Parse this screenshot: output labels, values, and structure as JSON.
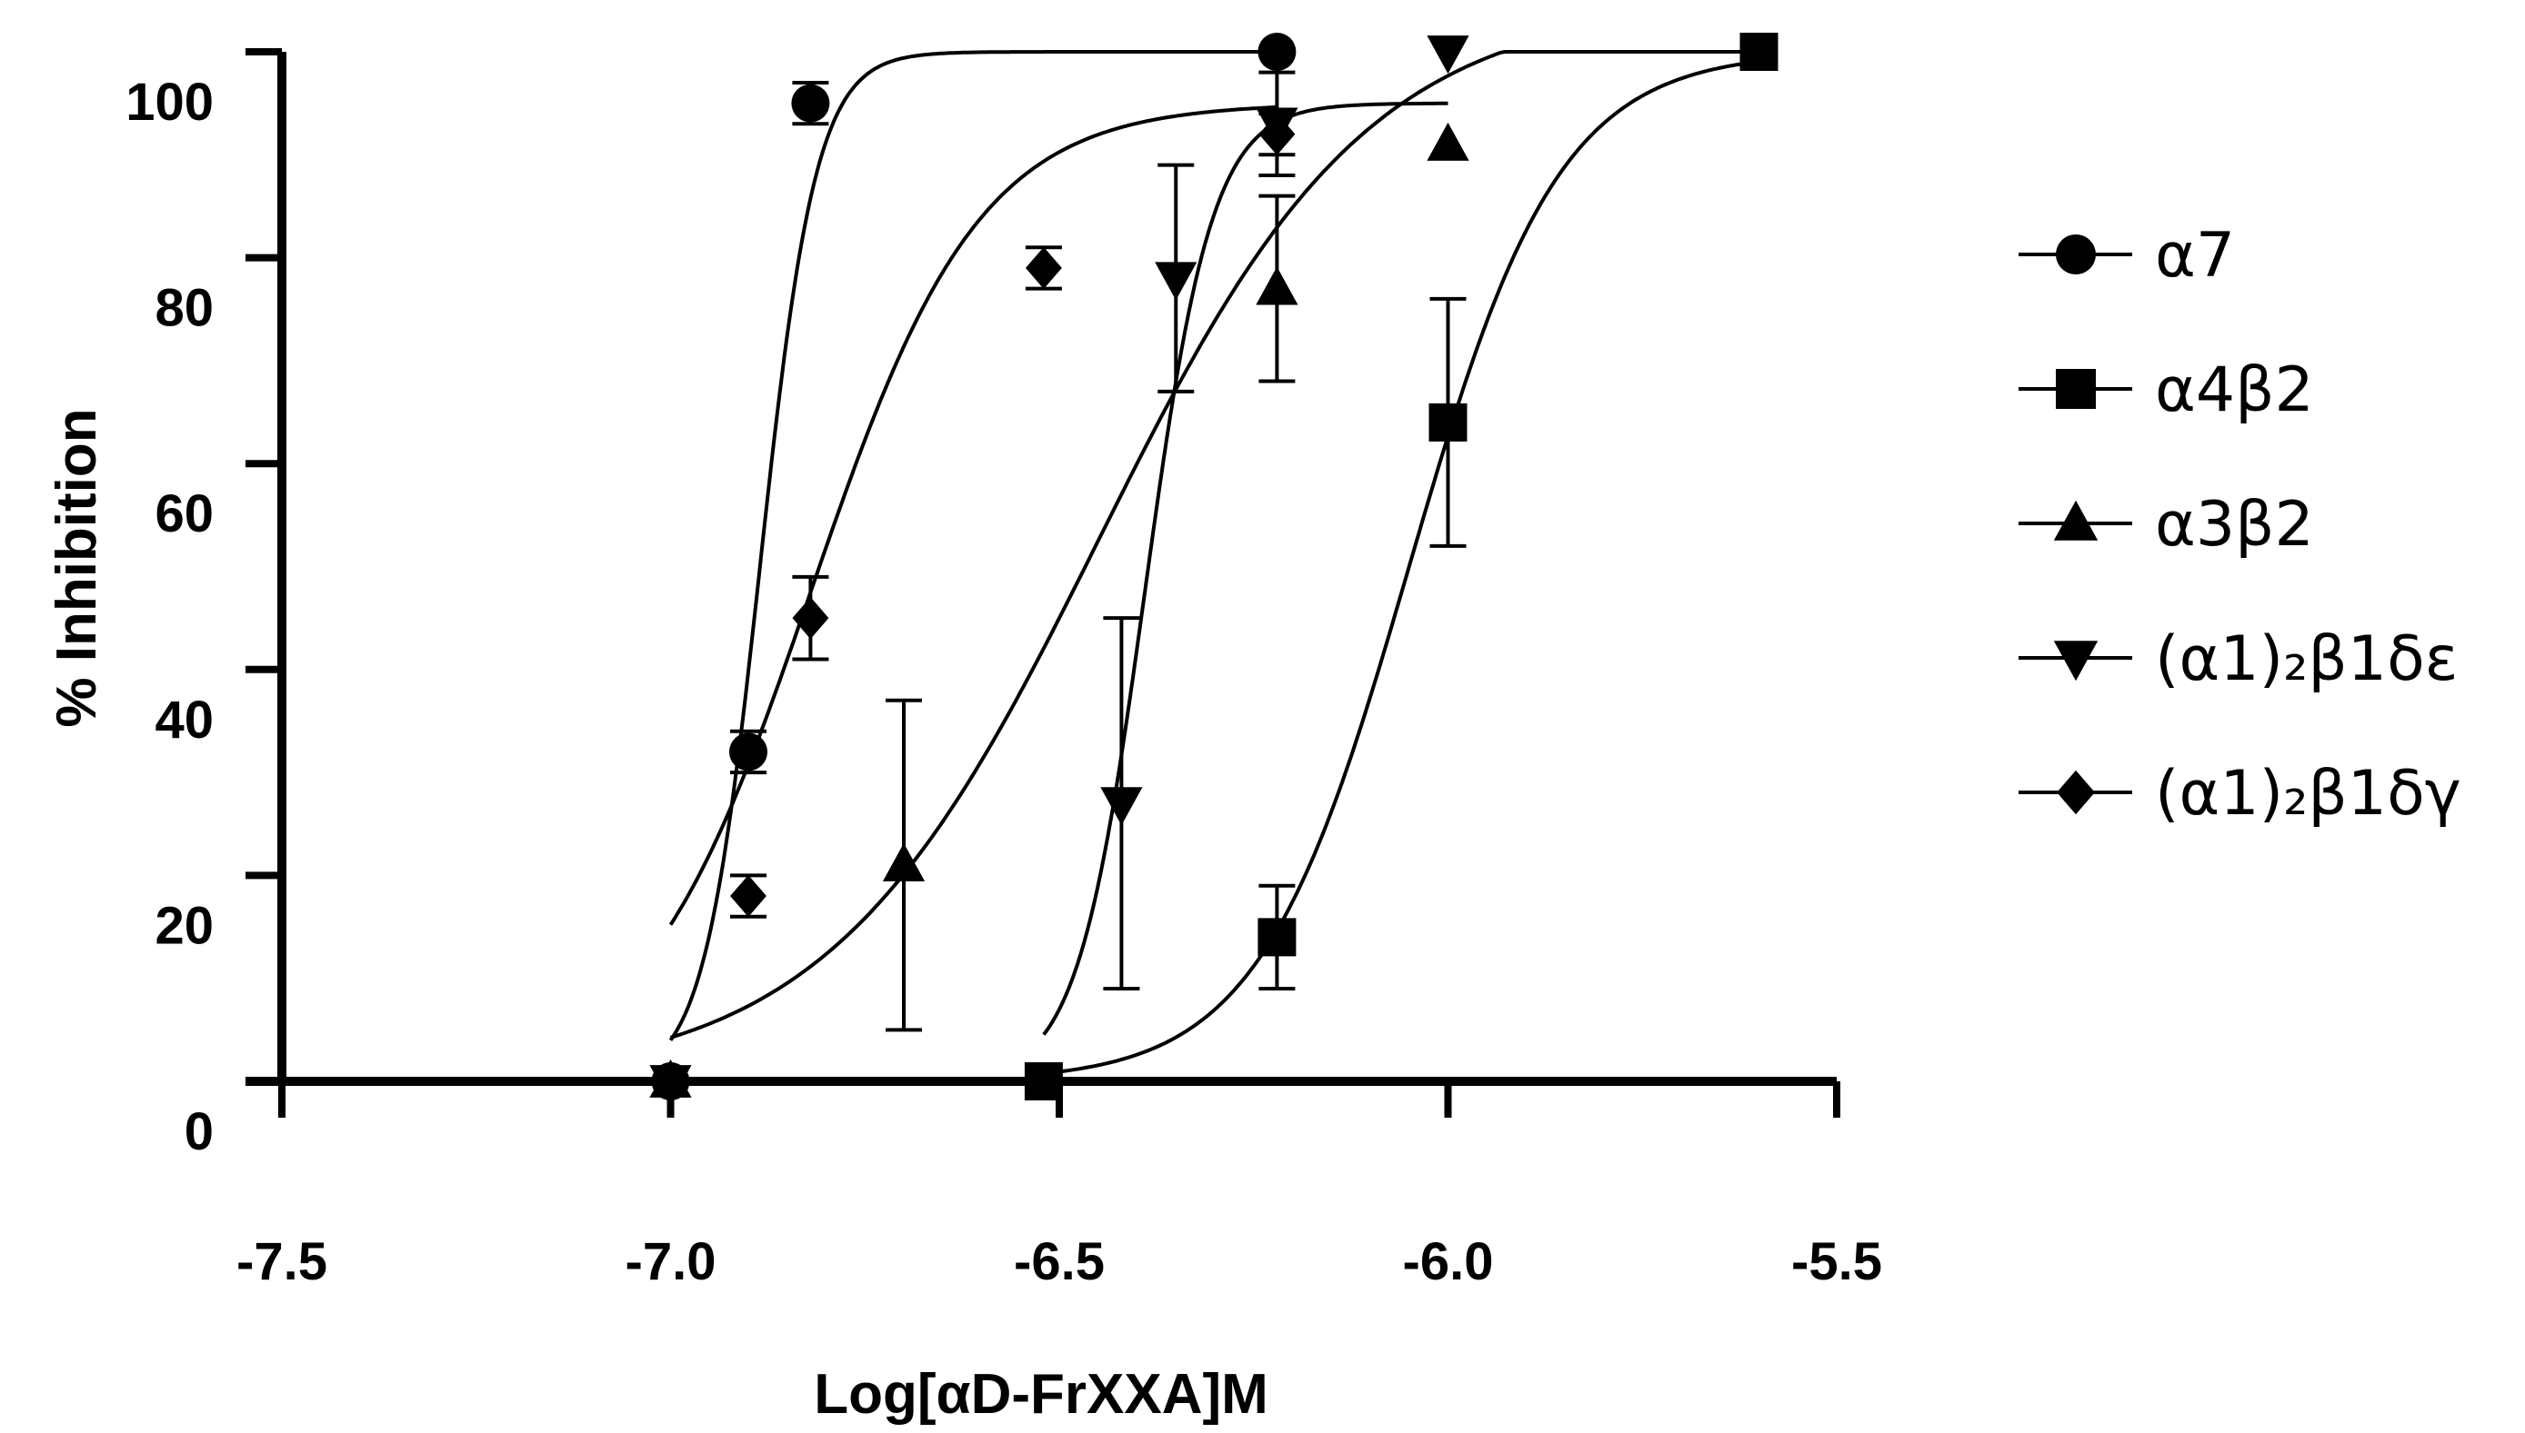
{
  "chart_data": {
    "type": "scatter",
    "xlabel": "Log[αD-FrXXA]M",
    "ylabel": "% Inhibition",
    "xlim": [
      -7.5,
      -5.5
    ],
    "ylim": [
      0,
      100
    ],
    "x_ticks": [
      -7.5,
      -7.0,
      -6.5,
      -6.0,
      -5.5
    ],
    "x_tick_labels": [
      "-7.5",
      "-7.0",
      "-6.5",
      "-6.0",
      "-5.5"
    ],
    "y_ticks": [
      0,
      20,
      40,
      60,
      80,
      100
    ],
    "y_tick_labels": [
      "0",
      "20",
      "40",
      "60",
      "80",
      "100"
    ],
    "grid": false,
    "legend_position": "right",
    "series": [
      {
        "name": "α7",
        "marker": "circle",
        "x": [
          -7.0,
          -6.9,
          -6.82,
          -6.22
        ],
        "y": [
          0,
          32,
          95,
          100
        ],
        "err": [
          0,
          2,
          2,
          0
        ],
        "fit": {
          "bottom": 0,
          "top": 100,
          "logEC50": -6.885,
          "hill": 12,
          "xmin": -7.0,
          "xmax": -6.22
        }
      },
      {
        "name": "α4β2",
        "marker": "square",
        "x": [
          -6.52,
          -6.22,
          -6.0,
          -5.6
        ],
        "y": [
          0,
          14,
          64,
          100
        ],
        "err": [
          0,
          5,
          12,
          0
        ],
        "fit": {
          "bottom": 0,
          "top": 100,
          "logEC50": -6.05,
          "hill": 4.5,
          "xmin": -6.52,
          "xmax": -5.6
        }
      },
      {
        "name": "α3β2",
        "marker": "triangle-up",
        "x": [
          -7.0,
          -6.7,
          -6.22,
          -6.0
        ],
        "y": [
          0,
          21,
          77,
          91
        ],
        "err": [
          0,
          16,
          9,
          0
        ],
        "fit": {
          "bottom": 0,
          "top": 105,
          "logEC50": -6.45,
          "hill": 2.5,
          "xmin": -7.0,
          "xmax": -5.6
        }
      },
      {
        "name": "(α1)₂β1δε",
        "marker": "triangle-down",
        "x": [
          -7.0,
          -6.42,
          -6.35,
          -6.22,
          -6.0
        ],
        "y": [
          0,
          27,
          78,
          93,
          100
        ],
        "err": [
          0,
          18,
          11,
          5,
          0
        ],
        "fit": {
          "bottom": 0,
          "top": 95,
          "logEC50": -6.39,
          "hill": 10,
          "xmin": -6.52,
          "xmax": -6.0
        }
      },
      {
        "name": "(α1)₂β1δγ",
        "marker": "diamond",
        "x": [
          -7.0,
          -6.9,
          -6.82,
          -6.52,
          -6.22
        ],
        "y": [
          0,
          18,
          45,
          79,
          92
        ],
        "err": [
          0,
          2,
          4,
          2,
          2
        ],
        "fit": {
          "bottom": 0,
          "top": 95,
          "logEC50": -6.82,
          "hill": 4,
          "xmin": -7.0,
          "xmax": -6.22
        }
      }
    ]
  }
}
